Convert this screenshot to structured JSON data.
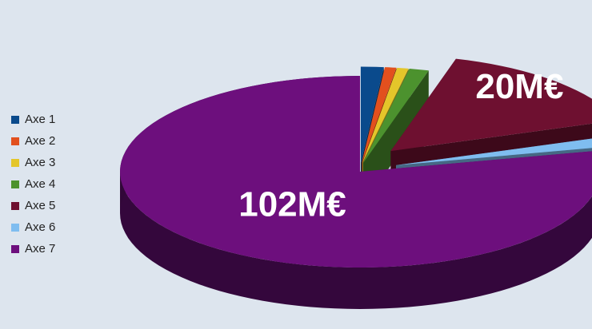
{
  "chart_data": {
    "type": "pie",
    "title": "",
    "categories": [
      "Axe 1",
      "Axe 2",
      "Axe 3",
      "Axe 4",
      "Axe 5",
      "Axe 6",
      "Axe 7"
    ],
    "values": [
      2.0,
      1.0,
      1.0,
      1.7,
      20,
      2.3,
      102
    ],
    "data_labels": [
      "",
      "",
      "",
      "",
      "20M€",
      "",
      "102M€"
    ],
    "colors": [
      "#0a4a8c",
      "#e2501e",
      "#e4c62a",
      "#4c922e",
      "#6e1030",
      "#7fbdf0",
      "#6d0f7d"
    ],
    "exploded": true,
    "three_d": true,
    "legend_position": "left"
  }
}
